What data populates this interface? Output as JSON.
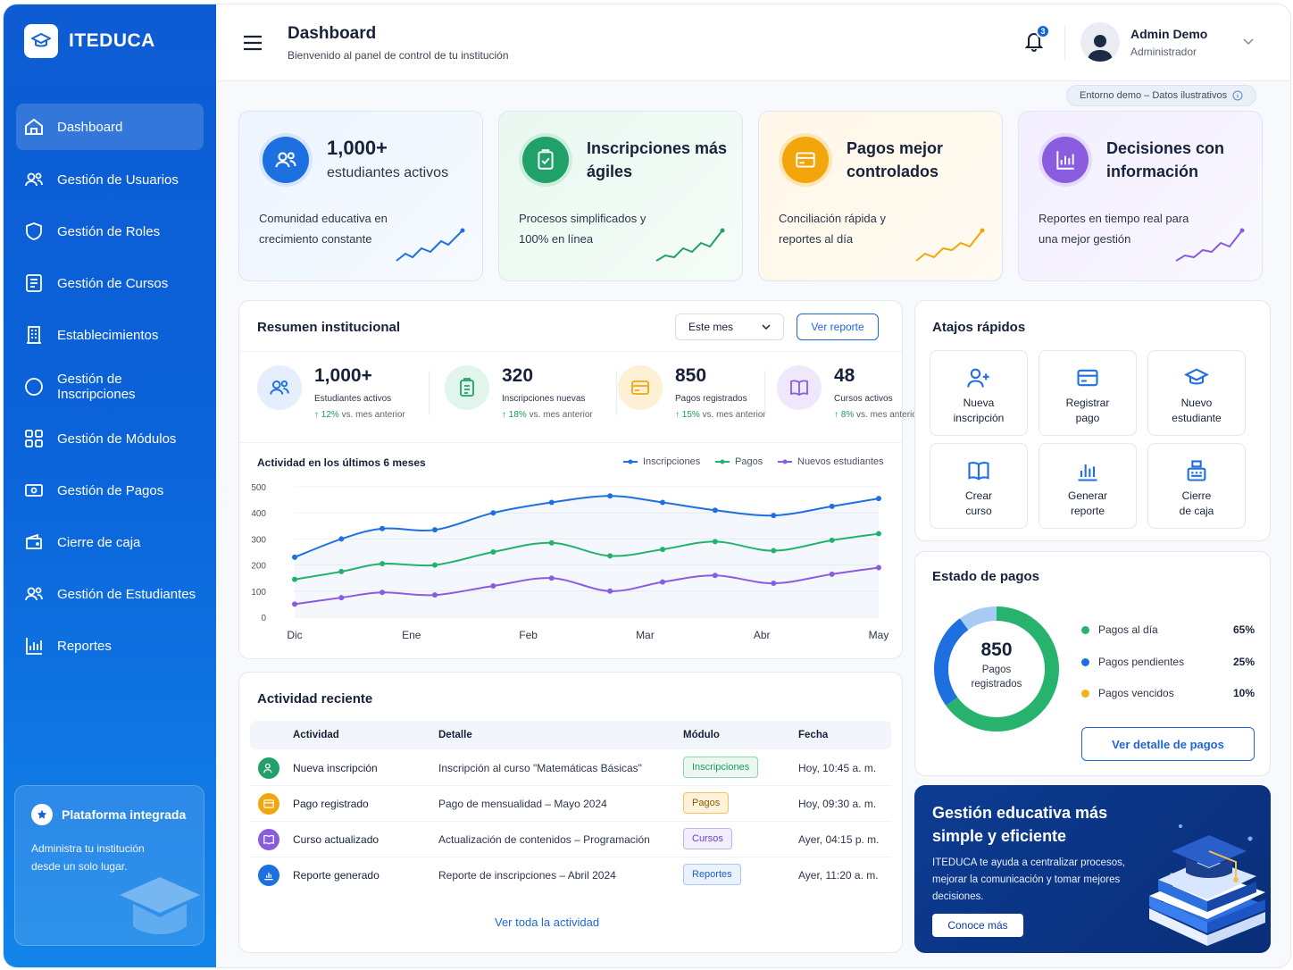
{
  "brand": {
    "name": "ITEDUCA"
  },
  "sidebar": {
    "items": [
      {
        "label": "Dashboard",
        "icon": "home-icon"
      },
      {
        "label": "Gestión de Usuarios",
        "icon": "users-icon"
      },
      {
        "label": "Gestión de Roles",
        "icon": "shield-icon"
      },
      {
        "label": "Gestión de Cursos",
        "icon": "document-icon"
      },
      {
        "label": "Establecimientos",
        "icon": "building-icon"
      },
      {
        "label": "Gestión de Inscripciones",
        "icon": "circle-icon"
      },
      {
        "label": "Gestión de Módulos",
        "icon": "grid-icon"
      },
      {
        "label": "Gestión de Pagos",
        "icon": "money-icon"
      },
      {
        "label": "Cierre de caja",
        "icon": "wallet-icon"
      },
      {
        "label": "Gestión de Estudiantes",
        "icon": "students-icon"
      },
      {
        "label": "Reportes",
        "icon": "bar-chart-icon"
      }
    ],
    "promo": {
      "title": "Plataforma integrada",
      "text": "Administra tu institución desde un solo lugar."
    }
  },
  "header": {
    "title": "Dashboard",
    "subtitle": "Bienvenido al panel de control de tu institución",
    "notifications": "3",
    "user_name": "Admin Demo",
    "user_role": "Administrador"
  },
  "demo_badge": "Entorno demo – Datos ilustrativos",
  "stat_cards": [
    {
      "title": "1,000+",
      "subtitle": "estudiantes activos",
      "desc": "Comunidad educativa en crecimiento constante",
      "color": "#1e6fe0"
    },
    {
      "title": "Inscripciones más ágiles",
      "subtitle": "",
      "desc": "Procesos simplificados y 100% en línea",
      "color": "#21a16a"
    },
    {
      "title": "Pagos mejor controlados",
      "subtitle": "",
      "desc": "Conciliación rápida y reportes al día",
      "color": "#f2a60c"
    },
    {
      "title": "Decisiones con información",
      "subtitle": "",
      "desc": "Reportes en tiempo real para una mejor gestión",
      "color": "#8a5ce0"
    }
  ],
  "summary": {
    "title": "Resumen institucional",
    "period": "Este mes",
    "report_button": "Ver reporte",
    "kpis": [
      {
        "value": "1,000+",
        "label": "Estudiantes activos",
        "delta": "↑ 12%",
        "delta_text": " vs. mes anterior"
      },
      {
        "value": "320",
        "label": "Inscripciones nuevas",
        "delta": "↑ 18%",
        "delta_text": " vs. mes anterior"
      },
      {
        "value": "850",
        "label": "Pagos registrados",
        "delta": "↑ 15%",
        "delta_text": " vs. mes anterior"
      },
      {
        "value": "48",
        "label": "Cursos activos",
        "delta": "↑ 8%",
        "delta_text": " vs. mes anterior"
      }
    ],
    "chart_title": "Actividad en los últimos 6 meses"
  },
  "chart_data": {
    "type": "line",
    "title": "Actividad en los últimos 6 meses",
    "categories": [
      "Dic",
      "Ene",
      "Feb",
      "Mar",
      "Abr",
      "May"
    ],
    "y_ticks": [
      0,
      100,
      200,
      300,
      400,
      500
    ],
    "ylim": [
      0,
      500
    ],
    "grid": true,
    "legend_position": "top-right",
    "x": [
      0,
      0.4,
      0.75,
      1.2,
      1.7,
      2.2,
      2.7,
      3.15,
      3.6,
      4.1,
      4.6,
      5.0
    ],
    "series": [
      {
        "name": "Inscripciones",
        "color": "#1e6fe0",
        "values": [
          230,
          300,
          340,
          335,
          400,
          440,
          465,
          440,
          410,
          390,
          425,
          455
        ]
      },
      {
        "name": "Pagos",
        "color": "#21b36e",
        "values": [
          145,
          175,
          205,
          200,
          250,
          285,
          235,
          260,
          290,
          255,
          295,
          320
        ]
      },
      {
        "name": "Nuevos estudiantes",
        "color": "#8a5ce0",
        "values": [
          50,
          75,
          95,
          85,
          120,
          150,
          100,
          135,
          160,
          130,
          165,
          190
        ]
      }
    ]
  },
  "activity": {
    "title": "Actividad reciente",
    "columns": [
      "Actividad",
      "Detalle",
      "Módulo",
      "Fecha"
    ],
    "rows": [
      {
        "activity": "Nueva inscripción",
        "detail": "Inscripción al curso \"Matemáticas Básicas\"",
        "module": "Inscripciones",
        "date": "Hoy, 10:45 a. m.",
        "color": "#21a16a"
      },
      {
        "activity": "Pago registrado",
        "detail": "Pago de mensualidad – Mayo 2024",
        "module": "Pagos",
        "date": "Hoy, 09:30 a. m.",
        "color": "#f2a60c"
      },
      {
        "activity": "Curso actualizado",
        "detail": "Actualización de contenidos – Programación",
        "module": "Cursos",
        "date": "Ayer, 04:15 p. m.",
        "color": "#8a5ce0"
      },
      {
        "activity": "Reporte generado",
        "detail": "Reporte de inscripciones – Abril 2024",
        "module": "Reportes",
        "date": "Ayer, 11:20 a. m.",
        "color": "#1e6fe0"
      }
    ],
    "link": "Ver toda la actividad"
  },
  "shortcuts": {
    "title": "Atajos rápidos",
    "items": [
      {
        "label": "Nueva\ninscripción",
        "icon": "user-plus-icon"
      },
      {
        "label": "Registrar\npago",
        "icon": "card-icon"
      },
      {
        "label": "Nuevo\nestudiante",
        "icon": "graduation-cap-icon"
      },
      {
        "label": "Crear\ncurso",
        "icon": "book-icon"
      },
      {
        "label": "Generar\nreporte",
        "icon": "report-icon"
      },
      {
        "label": "Cierre\nde caja",
        "icon": "cash-register-icon"
      }
    ]
  },
  "payments": {
    "title": "Estado de pagos",
    "total": "850",
    "total_label": "Pagos registrados",
    "items": [
      {
        "label": "Pagos al día",
        "pct": "65%",
        "value": 65,
        "color": "#27b36e"
      },
      {
        "label": "Pagos pendientes",
        "pct": "25%",
        "value": 25,
        "color": "#1e6fe0"
      },
      {
        "label": "Pagos vencidos",
        "pct": "10%",
        "value": 10,
        "color": "#a8cbf5"
      }
    ],
    "legend_dot_colors": [
      "#27b36e",
      "#1e6fe0",
      "#f2b31a"
    ],
    "button": "Ver detalle de pagos"
  },
  "promo_banner": {
    "title": "Gestión educativa más simple y eficiente",
    "text": "ITEDUCA te ayuda a centralizar procesos, mejorar la comunicación y tomar mejores decisiones.",
    "button": "Conoce más"
  }
}
